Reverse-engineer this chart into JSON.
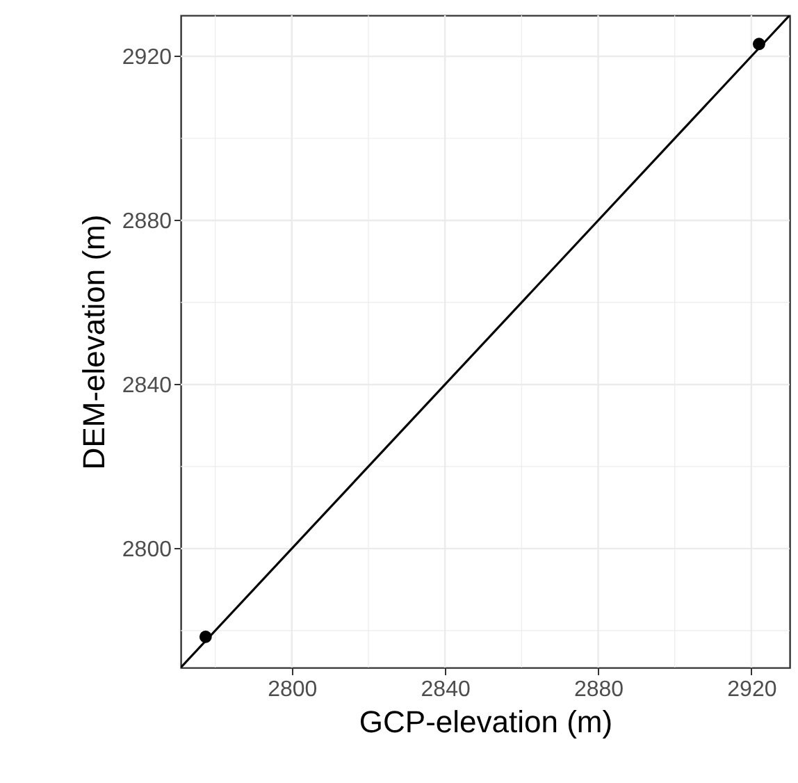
{
  "chart_data": {
    "type": "scatter",
    "xlabel": "GCP-elevation (m)",
    "ylabel": "DEM-elevation (m)",
    "xlim": [
      2771,
      2930
    ],
    "ylim": [
      2771,
      2930
    ],
    "xticks": [
      {
        "value": 2780,
        "label": null
      },
      2800,
      {
        "value": 2820,
        "label": null
      },
      2840,
      {
        "value": 2860,
        "label": null
      },
      2880,
      {
        "value": 2900,
        "label": null
      },
      2920
    ],
    "yticks": [
      {
        "value": 2780,
        "label": null
      },
      2800,
      {
        "value": 2820,
        "label": null
      },
      2840,
      {
        "value": 2860,
        "label": null
      },
      2880,
      {
        "value": 2900,
        "label": null
      },
      2920
    ],
    "grid": true,
    "marker": "circle",
    "series": [
      {
        "type": "line",
        "color": "#000000",
        "x": [
          2771,
          2930
        ],
        "values": [
          2771,
          2930
        ],
        "line_style": "solid",
        "marker": "none"
      },
      {
        "color": "#000000",
        "x": [
          2777.5,
          2922
        ],
        "values": [
          2778.5,
          2923
        ]
      }
    ]
  }
}
